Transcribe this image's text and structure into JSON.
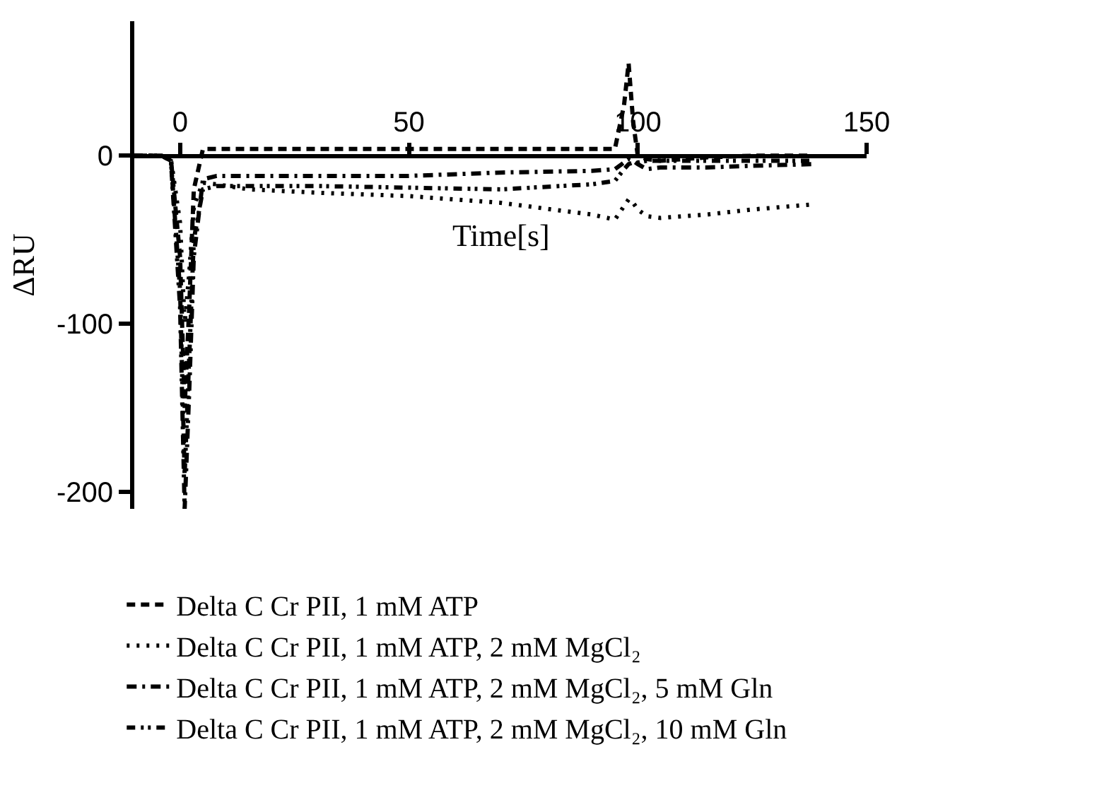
{
  "chart_data": {
    "type": "line",
    "xlabel": "Time[s]",
    "ylabel": "ΔRU",
    "xlim": [
      -10,
      150
    ],
    "ylim": [
      -210,
      80
    ],
    "xticks": [
      0,
      50,
      100,
      150
    ],
    "yticks": [
      -200,
      -100,
      0
    ],
    "legend": "bottom",
    "marker": "none",
    "x": [
      -10,
      -4,
      -2,
      0,
      1,
      2,
      3,
      5,
      8,
      15,
      30,
      50,
      70,
      90,
      95,
      97,
      98,
      99,
      100,
      102,
      105,
      115,
      125,
      138
    ],
    "series": [
      {
        "name": "Delta C Cr PII, 1 mM ATP",
        "color": "#000000",
        "line_style": "dashed",
        "values": [
          0,
          0,
          -2,
          -60,
          -150,
          -90,
          -20,
          4,
          4,
          4,
          4,
          4,
          4,
          4,
          4,
          30,
          55,
          20,
          0,
          -2,
          -3,
          -1,
          0,
          0
        ]
      },
      {
        "name": "Delta C Cr PII, 1 mM ATP, 2 mM MgCl₂",
        "color": "#000000",
        "line_style": "dotted",
        "values": [
          0,
          0,
          -2,
          -40,
          -100,
          -70,
          -30,
          -16,
          -17,
          -20,
          -22,
          -24,
          -28,
          -35,
          -38,
          -30,
          -26,
          -28,
          -32,
          -36,
          -37,
          -35,
          -32,
          -29
        ]
      },
      {
        "name": "Delta C Cr PII, 1 mM ATP, 2 mM MgCl₂, 5 mM Gln",
        "color": "#000000",
        "line_style": "dashdot",
        "values": [
          0,
          0,
          -3,
          -90,
          -210,
          -140,
          -60,
          -14,
          -12,
          -12,
          -12,
          -12,
          -10,
          -9,
          -8,
          -4,
          -2,
          -3,
          -5,
          -8,
          -7,
          -7,
          -6,
          -5
        ]
      },
      {
        "name": "Delta C Cr PII, 1 mM ATP, 2 mM MgCl₂, 10 mM Gln",
        "color": "#000000",
        "line_style": "dashdotdot",
        "values": [
          0,
          0,
          -3,
          -80,
          -190,
          -120,
          -50,
          -20,
          -18,
          -18,
          -18,
          -19,
          -20,
          -17,
          -15,
          -8,
          -5,
          -4,
          -4,
          -3,
          -3,
          -3,
          -3,
          -3
        ]
      }
    ]
  }
}
